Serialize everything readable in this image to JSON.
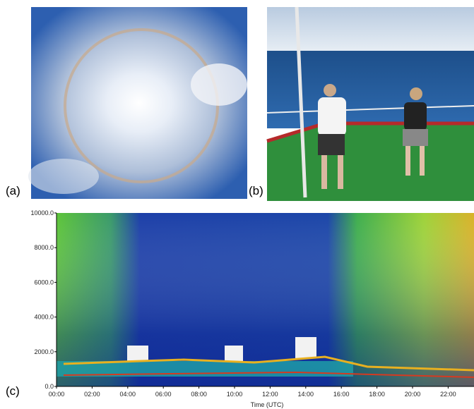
{
  "panels": [
    {
      "label": "(a)"
    },
    {
      "label": "(b)"
    },
    {
      "label": "(c)",
      "x_axis": {
        "title": "Time (UTC)",
        "ticks": [
          "00:00",
          "02:00",
          "04:00",
          "06:00",
          "08:00",
          "10:00",
          "12:00",
          "14:00",
          "16:00",
          "18:00",
          "20:00",
          "22:00"
        ]
      },
      "y_axis": {
        "ticks": [
          "10000.0",
          "8000.0",
          "6000.0",
          "4000.0",
          "2000.0",
          "0.0"
        ]
      }
    }
  ]
}
